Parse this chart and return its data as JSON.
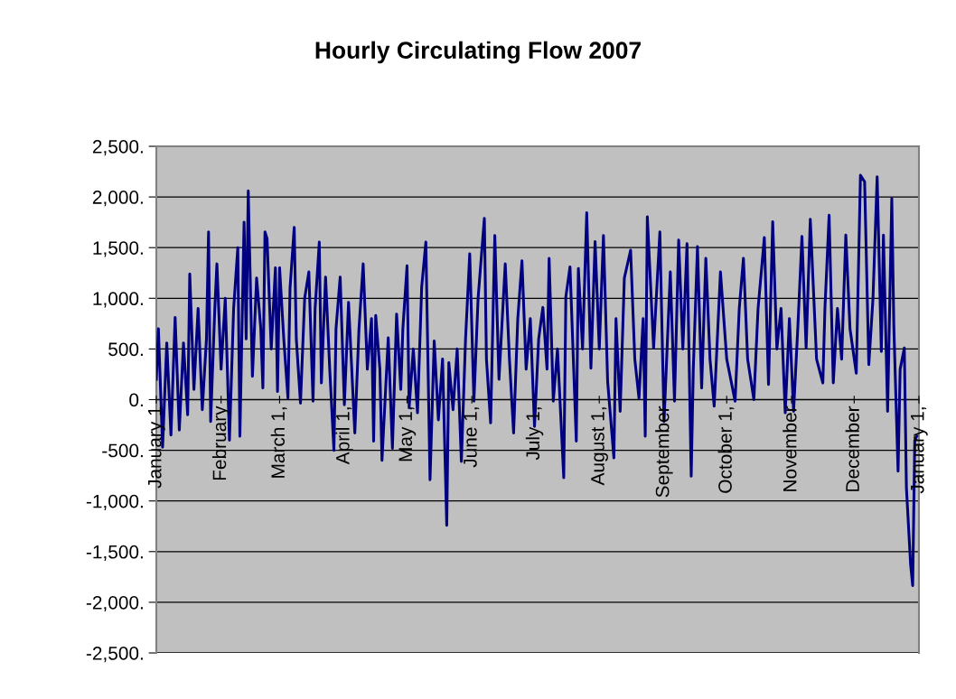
{
  "chart_data": {
    "type": "line",
    "title": "Hourly Circulating Flow 2007",
    "x": [
      "2007-01-01",
      "2007-01-02",
      "2007-01-04",
      "2007-01-06",
      "2007-01-08",
      "2007-01-10",
      "2007-01-12",
      "2007-01-14",
      "2007-01-16",
      "2007-01-17",
      "2007-01-19",
      "2007-01-21",
      "2007-01-23",
      "2007-01-25",
      "2007-01-26",
      "2007-01-27",
      "2007-01-29",
      "2007-01-30",
      "2007-02-01",
      "2007-02-03",
      "2007-02-05",
      "2007-02-07",
      "2007-02-09",
      "2007-02-10",
      "2007-02-12",
      "2007-02-13",
      "2007-02-14",
      "2007-02-16",
      "2007-02-18",
      "2007-02-20",
      "2007-02-21",
      "2007-02-22",
      "2007-02-23",
      "2007-02-25",
      "2007-02-27",
      "2007-02-28",
      "2007-03-01",
      "2007-03-03",
      "2007-03-05",
      "2007-03-06",
      "2007-03-08",
      "2007-03-09",
      "2007-03-11",
      "2007-03-13",
      "2007-03-15",
      "2007-03-17",
      "2007-03-18",
      "2007-03-20",
      "2007-03-21",
      "2007-03-23",
      "2007-03-25",
      "2007-03-27",
      "2007-03-28",
      "2007-03-30",
      "2007-04-01",
      "2007-04-03",
      "2007-04-06",
      "2007-04-08",
      "2007-04-10",
      "2007-04-12",
      "2007-04-14",
      "2007-04-15",
      "2007-04-16",
      "2007-04-18",
      "2007-04-19",
      "2007-04-22",
      "2007-04-24",
      "2007-04-26",
      "2007-04-28",
      "2007-04-29",
      "2007-05-01",
      "2007-05-02",
      "2007-05-04",
      "2007-05-06",
      "2007-05-08",
      "2007-05-10",
      "2007-05-12",
      "2007-05-14",
      "2007-05-16",
      "2007-05-18",
      "2007-05-20",
      "2007-05-21",
      "2007-05-23",
      "2007-05-25",
      "2007-05-27",
      "2007-05-29",
      "2007-05-31",
      "2007-06-02",
      "2007-06-04",
      "2007-06-07",
      "2007-06-08",
      "2007-06-10",
      "2007-06-12",
      "2007-06-14",
      "2007-06-17",
      "2007-06-19",
      "2007-06-21",
      "2007-06-23",
      "2007-06-25",
      "2007-06-27",
      "2007-06-29",
      "2007-07-01",
      "2007-07-03",
      "2007-07-05",
      "2007-07-07",
      "2007-07-08",
      "2007-07-10",
      "2007-07-12",
      "2007-07-15",
      "2007-07-16",
      "2007-07-18",
      "2007-07-21",
      "2007-07-22",
      "2007-07-24",
      "2007-07-26",
      "2007-07-28",
      "2007-07-30",
      "2007-08-01",
      "2007-08-03",
      "2007-08-05",
      "2007-08-08",
      "2007-08-09",
      "2007-08-11",
      "2007-08-13",
      "2007-08-16",
      "2007-08-18",
      "2007-08-20",
      "2007-08-22",
      "2007-08-23",
      "2007-08-24",
      "2007-08-27",
      "2007-08-30",
      "2007-09-01",
      "2007-09-04",
      "2007-09-06",
      "2007-09-08",
      "2007-09-10",
      "2007-09-12",
      "2007-09-14",
      "2007-09-15",
      "2007-09-17",
      "2007-09-19",
      "2007-09-21",
      "2007-09-23",
      "2007-09-25",
      "2007-09-28",
      "2007-10-01",
      "2007-10-05",
      "2007-10-07",
      "2007-10-09",
      "2007-10-11",
      "2007-10-14",
      "2007-10-16",
      "2007-10-19",
      "2007-10-21",
      "2007-10-23",
      "2007-10-25",
      "2007-10-27",
      "2007-10-29",
      "2007-10-31",
      "2007-11-02",
      "2007-11-04",
      "2007-11-06",
      "2007-11-08",
      "2007-11-10",
      "2007-11-13",
      "2007-11-16",
      "2007-11-17",
      "2007-11-19",
      "2007-11-21",
      "2007-11-23",
      "2007-11-25",
      "2007-11-27",
      "2007-11-29",
      "2007-12-02",
      "2007-12-04",
      "2007-12-06",
      "2007-12-08",
      "2007-12-10",
      "2007-12-12",
      "2007-12-14",
      "2007-12-15",
      "2007-12-17",
      "2007-12-19",
      "2007-12-20",
      "2007-12-22",
      "2007-12-23",
      "2007-12-25",
      "2007-12-26",
      "2007-12-28",
      "2007-12-29",
      "2007-12-30",
      "2007-12-31"
    ],
    "series": [
      {
        "color": "#000080",
        "values": [
          200,
          700,
          -470,
          560,
          -350,
          810,
          -300,
          560,
          -150,
          1240,
          100,
          900,
          -100,
          600,
          1655,
          -215,
          900,
          1340,
          300,
          1000,
          -400,
          900,
          1500,
          -360,
          1750,
          600,
          2060,
          230,
          1200,
          700,
          115,
          1655,
          1590,
          500,
          1300,
          80,
          1300,
          600,
          15,
          1100,
          1700,
          600,
          -35,
          1000,
          1260,
          -15,
          900,
          1555,
          165,
          1210,
          300,
          -500,
          700,
          1210,
          -50,
          960,
          -330,
          700,
          1340,
          300,
          800,
          -410,
          830,
          300,
          -600,
          610,
          -480,
          845,
          100,
          700,
          1320,
          -80,
          500,
          -130,
          1110,
          1555,
          -790,
          580,
          -200,
          400,
          -1240,
          365,
          -100,
          500,
          -610,
          600,
          1440,
          -15,
          1000,
          1790,
          400,
          -230,
          1620,
          200,
          1340,
          400,
          -330,
          800,
          1370,
          300,
          800,
          -265,
          600,
          910,
          300,
          1395,
          -15,
          500,
          -770,
          1015,
          1310,
          -410,
          1295,
          500,
          1845,
          310,
          1560,
          500,
          1620,
          180,
          -575,
          800,
          -115,
          1200,
          1475,
          400,
          15,
          800,
          -360,
          1805,
          510,
          1655,
          -215,
          1260,
          -15,
          1575,
          500,
          1540,
          -755,
          300,
          1510,
          115,
          1395,
          400,
          -65,
          1260,
          400,
          -15,
          900,
          1395,
          400,
          0,
          900,
          1600,
          150,
          1755,
          500,
          900,
          -130,
          800,
          -115,
          700,
          1610,
          510,
          1780,
          400,
          165,
          900,
          1820,
          165,
          900,
          400,
          1625,
          700,
          260,
          2215,
          2150,
          345,
          1000,
          2200,
          475,
          1625,
          -115,
          1985,
          705,
          -705,
          300,
          510,
          -870,
          -1625,
          -1835,
          -400,
          -360
        ]
      }
    ],
    "xlim": [
      "2007-01-01",
      "2008-01-01"
    ],
    "xticks": [
      {
        "value": "2007-01-01",
        "label": "January 1"
      },
      {
        "value": "2007-02-01",
        "label": "February"
      },
      {
        "value": "2007-03-01",
        "label": "March 1,"
      },
      {
        "value": "2007-04-01",
        "label": "April 1,"
      },
      {
        "value": "2007-05-01",
        "label": "May 1,"
      },
      {
        "value": "2007-06-01",
        "label": "June 1,"
      },
      {
        "value": "2007-07-01",
        "label": "July 1,"
      },
      {
        "value": "2007-08-01",
        "label": "August 1,"
      },
      {
        "value": "2007-09-01",
        "label": "September"
      },
      {
        "value": "2007-10-01",
        "label": "October 1,"
      },
      {
        "value": "2007-11-01",
        "label": "November"
      },
      {
        "value": "2007-12-01",
        "label": "December"
      },
      {
        "value": "2008-01-01",
        "label": "January 1,"
      }
    ],
    "ylim": [
      -2500,
      2500
    ],
    "yticks": [
      {
        "value": 2500,
        "label": "2,500."
      },
      {
        "value": 2000,
        "label": "2,000."
      },
      {
        "value": 1500,
        "label": "1,500."
      },
      {
        "value": 1000,
        "label": "1,000."
      },
      {
        "value": 500,
        "label": "500."
      },
      {
        "value": 0,
        "label": "0."
      },
      {
        "value": -500,
        "label": "-500."
      },
      {
        "value": -1000,
        "label": "-1,000."
      },
      {
        "value": -1500,
        "label": "-1,500."
      },
      {
        "value": -2000,
        "label": "-2,000."
      },
      {
        "value": -2500,
        "label": "-2,500."
      }
    ],
    "grid": "y",
    "legend": false,
    "marker": "none",
    "line_style": "solid"
  }
}
